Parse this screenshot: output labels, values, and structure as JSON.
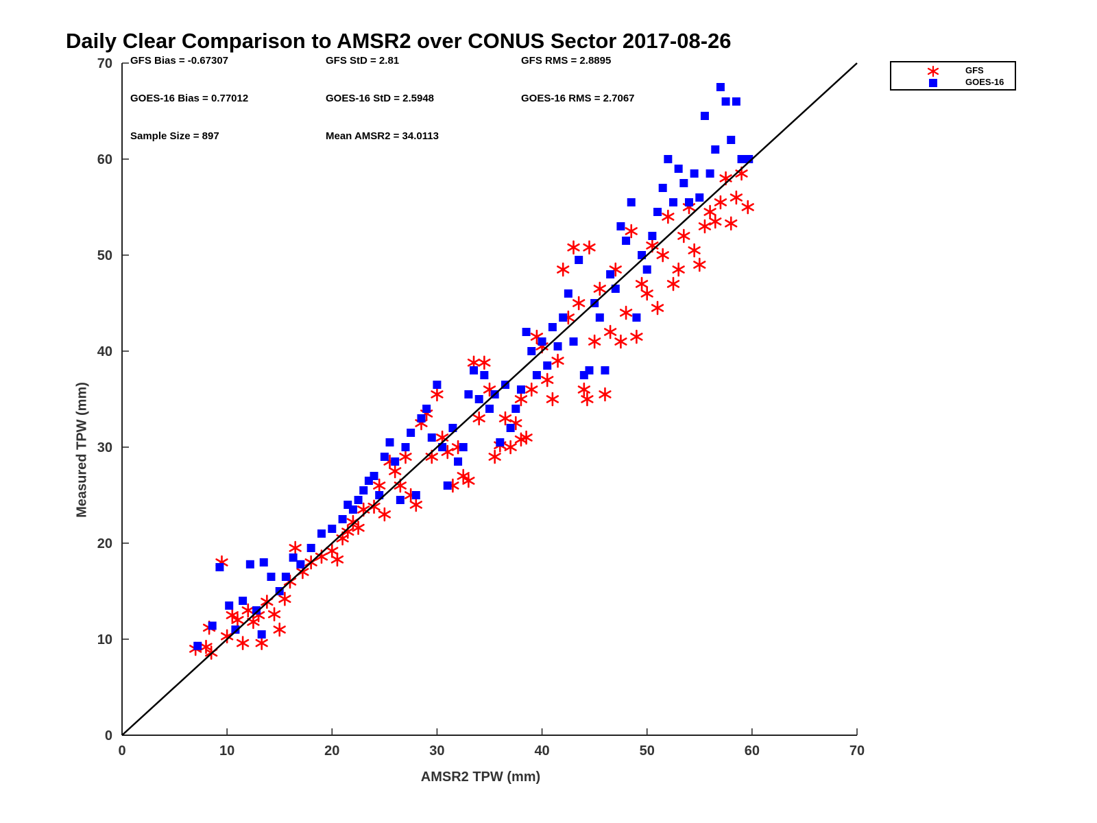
{
  "chart_data": {
    "type": "scatter",
    "title": "Daily Clear Comparison to AMSR2 over CONUS Sector 2017-08-26",
    "xlabel": "AMSR2 TPW (mm)",
    "ylabel": "Measured TPW (mm)",
    "xlim": [
      0,
      70
    ],
    "ylim": [
      0,
      70
    ],
    "xticks": [
      "0",
      "10",
      "20",
      "30",
      "40",
      "50",
      "60",
      "70"
    ],
    "yticks": [
      "0",
      "10",
      "20",
      "30",
      "40",
      "50",
      "60",
      "70"
    ],
    "grid": false,
    "legend_position": "outside-top-right",
    "reference_line": {
      "x": [
        0,
        70
      ],
      "y": [
        0,
        70
      ],
      "color": "#000000"
    },
    "annotations": {
      "gfs_bias": "GFS Bias = -0.67307",
      "gfs_std": "GFS StD = 2.81",
      "gfs_rms": "GFS RMS = 2.8895",
      "goes_bias": "GOES-16 Bias = 0.77012",
      "goes_std": "GOES-16 StD = 2.5948",
      "goes_rms": "GOES-16 RMS = 2.7067",
      "sample_size": "Sample Size = 897",
      "mean_amsr2": "Mean AMSR2 = 34.0113"
    },
    "series": [
      {
        "name": "GFS",
        "marker": "asterisk",
        "color": "#ff0000",
        "points": [
          [
            7.0,
            9.0
          ],
          [
            8.0,
            9.2
          ],
          [
            8.5,
            8.6
          ],
          [
            8.3,
            11.2
          ],
          [
            9.5,
            18.0
          ],
          [
            10.0,
            10.3
          ],
          [
            10.5,
            12.5
          ],
          [
            11.0,
            12.0
          ],
          [
            11.5,
            9.6
          ],
          [
            12.0,
            13.0
          ],
          [
            12.5,
            11.8
          ],
          [
            13.0,
            12.5
          ],
          [
            13.3,
            9.6
          ],
          [
            13.8,
            13.9
          ],
          [
            14.5,
            12.6
          ],
          [
            15.0,
            11.0
          ],
          [
            15.5,
            14.2
          ],
          [
            16.0,
            16.0
          ],
          [
            16.5,
            19.5
          ],
          [
            17.2,
            17.0
          ],
          [
            18.0,
            18.0
          ],
          [
            19.0,
            18.6
          ],
          [
            20.0,
            19.2
          ],
          [
            20.5,
            18.3
          ],
          [
            21.0,
            20.5
          ],
          [
            21.5,
            21.2
          ],
          [
            22.0,
            22.2
          ],
          [
            22.5,
            21.6
          ],
          [
            23.0,
            23.5
          ],
          [
            24.0,
            23.8
          ],
          [
            24.5,
            26.0
          ],
          [
            25.0,
            23.0
          ],
          [
            25.5,
            28.5
          ],
          [
            26.0,
            27.5
          ],
          [
            26.5,
            26.0
          ],
          [
            27.0,
            29.0
          ],
          [
            27.5,
            25.0
          ],
          [
            28.0,
            24.0
          ],
          [
            28.5,
            32.5
          ],
          [
            29.0,
            33.5
          ],
          [
            29.5,
            29.0
          ],
          [
            30.0,
            35.5
          ],
          [
            30.5,
            31.0
          ],
          [
            31.0,
            29.5
          ],
          [
            31.5,
            26.0
          ],
          [
            32.0,
            30.0
          ],
          [
            32.5,
            27.0
          ],
          [
            33.0,
            26.5
          ],
          [
            33.5,
            38.8
          ],
          [
            34.0,
            33.0
          ],
          [
            34.5,
            38.8
          ],
          [
            35.0,
            36.0
          ],
          [
            35.5,
            29.0
          ],
          [
            36.0,
            30.2
          ],
          [
            36.5,
            33.0
          ],
          [
            37.0,
            30.0
          ],
          [
            37.5,
            32.5
          ],
          [
            38.0,
            30.8
          ],
          [
            38.5,
            31.0
          ],
          [
            38.0,
            35.0
          ],
          [
            39.0,
            36.0
          ],
          [
            39.5,
            41.5
          ],
          [
            40.0,
            40.5
          ],
          [
            40.5,
            37.0
          ],
          [
            41.0,
            35.0
          ],
          [
            41.5,
            39.0
          ],
          [
            42.0,
            48.5
          ],
          [
            42.5,
            43.5
          ],
          [
            43.0,
            50.8
          ],
          [
            43.5,
            45.0
          ],
          [
            44.0,
            36.0
          ],
          [
            44.3,
            35.0
          ],
          [
            44.5,
            50.8
          ],
          [
            45.0,
            41.0
          ],
          [
            45.5,
            46.5
          ],
          [
            46.0,
            35.5
          ],
          [
            46.5,
            42.0
          ],
          [
            47.0,
            48.5
          ],
          [
            47.5,
            41.0
          ],
          [
            48.0,
            44.0
          ],
          [
            48.5,
            52.5
          ],
          [
            49.0,
            41.5
          ],
          [
            49.5,
            47.0
          ],
          [
            50.0,
            46.0
          ],
          [
            50.5,
            51.0
          ],
          [
            51.0,
            44.5
          ],
          [
            51.5,
            50.0
          ],
          [
            52.0,
            54.0
          ],
          [
            52.5,
            47.0
          ],
          [
            53.0,
            48.5
          ],
          [
            53.5,
            52.0
          ],
          [
            54.0,
            55.0
          ],
          [
            54.5,
            50.5
          ],
          [
            55.0,
            49.0
          ],
          [
            55.5,
            53.0
          ],
          [
            56.0,
            54.5
          ],
          [
            56.5,
            53.5
          ],
          [
            57.0,
            55.5
          ],
          [
            57.5,
            58.0
          ],
          [
            58.0,
            53.3
          ],
          [
            58.5,
            56.0
          ],
          [
            59.0,
            58.5
          ],
          [
            59.6,
            55.0
          ]
        ]
      },
      {
        "name": "GOES-16",
        "marker": "square",
        "color": "#0000ff",
        "points": [
          [
            7.2,
            9.3
          ],
          [
            8.6,
            11.4
          ],
          [
            9.3,
            17.5
          ],
          [
            10.2,
            13.5
          ],
          [
            10.8,
            11.0
          ],
          [
            11.5,
            14.0
          ],
          [
            12.2,
            17.8
          ],
          [
            12.8,
            13.0
          ],
          [
            13.3,
            10.5
          ],
          [
            13.5,
            18.0
          ],
          [
            14.2,
            16.5
          ],
          [
            15.0,
            15.0
          ],
          [
            15.6,
            16.5
          ],
          [
            16.3,
            18.5
          ],
          [
            17.0,
            17.8
          ],
          [
            18.0,
            19.5
          ],
          [
            19.0,
            21.0
          ],
          [
            20.0,
            21.5
          ],
          [
            21.0,
            22.5
          ],
          [
            21.5,
            24.0
          ],
          [
            22.0,
            23.5
          ],
          [
            22.5,
            24.5
          ],
          [
            23.0,
            25.5
          ],
          [
            23.5,
            26.5
          ],
          [
            24.0,
            27.0
          ],
          [
            24.5,
            25.0
          ],
          [
            25.0,
            29.0
          ],
          [
            25.5,
            30.5
          ],
          [
            26.0,
            28.5
          ],
          [
            26.5,
            24.5
          ],
          [
            27.0,
            30.0
          ],
          [
            27.5,
            31.5
          ],
          [
            28.0,
            25.0
          ],
          [
            28.5,
            33.0
          ],
          [
            29.0,
            34.0
          ],
          [
            29.5,
            31.0
          ],
          [
            30.0,
            36.5
          ],
          [
            30.5,
            30.0
          ],
          [
            31.0,
            26.0
          ],
          [
            31.5,
            32.0
          ],
          [
            32.0,
            28.5
          ],
          [
            32.5,
            30.0
          ],
          [
            33.0,
            35.5
          ],
          [
            33.5,
            38.0
          ],
          [
            34.0,
            35.0
          ],
          [
            34.5,
            37.5
          ],
          [
            35.0,
            34.0
          ],
          [
            35.5,
            35.5
          ],
          [
            36.0,
            30.5
          ],
          [
            36.5,
            36.5
          ],
          [
            37.0,
            32.0
          ],
          [
            37.5,
            34.0
          ],
          [
            38.0,
            36.0
          ],
          [
            38.5,
            42.0
          ],
          [
            39.0,
            40.0
          ],
          [
            39.5,
            37.5
          ],
          [
            40.0,
            41.0
          ],
          [
            40.5,
            38.5
          ],
          [
            41.0,
            42.5
          ],
          [
            41.5,
            40.5
          ],
          [
            42.0,
            43.5
          ],
          [
            42.5,
            46.0
          ],
          [
            43.0,
            41.0
          ],
          [
            43.5,
            49.5
          ],
          [
            44.0,
            37.5
          ],
          [
            44.5,
            38.0
          ],
          [
            45.0,
            45.0
          ],
          [
            45.5,
            43.5
          ],
          [
            46.0,
            38.0
          ],
          [
            46.5,
            48.0
          ],
          [
            47.0,
            46.5
          ],
          [
            47.5,
            53.0
          ],
          [
            48.0,
            51.5
          ],
          [
            48.5,
            55.5
          ],
          [
            49.0,
            43.5
          ],
          [
            49.5,
            50.0
          ],
          [
            50.0,
            48.5
          ],
          [
            50.5,
            52.0
          ],
          [
            51.0,
            54.5
          ],
          [
            51.5,
            57.0
          ],
          [
            52.0,
            60.0
          ],
          [
            52.5,
            55.5
          ],
          [
            53.0,
            59.0
          ],
          [
            53.5,
            57.5
          ],
          [
            54.0,
            55.5
          ],
          [
            54.5,
            58.5
          ],
          [
            55.0,
            56.0
          ],
          [
            55.5,
            64.5
          ],
          [
            56.0,
            58.5
          ],
          [
            56.5,
            61.0
          ],
          [
            57.0,
            67.5
          ],
          [
            57.5,
            66.0
          ],
          [
            58.0,
            62.0
          ],
          [
            58.5,
            66.0
          ],
          [
            59.0,
            60.0
          ],
          [
            59.7,
            60.0
          ]
        ]
      }
    ]
  }
}
